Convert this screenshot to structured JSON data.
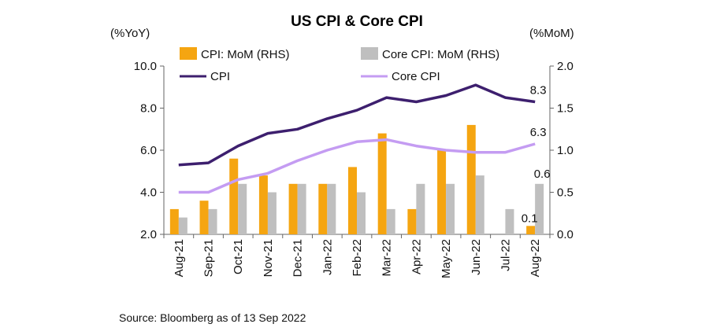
{
  "chart_data": {
    "type": "bar",
    "title": "US CPI & Core CPI",
    "left_axis_label": "(%YoY)",
    "right_axis_label": "(%MoM)",
    "categories": [
      "Aug-21",
      "Sep-21",
      "Oct-21",
      "Nov-21",
      "Dec-21",
      "Jan-22",
      "Feb-22",
      "Mar-22",
      "Apr-22",
      "May-22",
      "Jun-22",
      "Jul-22",
      "Aug-22"
    ],
    "ylim_left": [
      2.0,
      10.0
    ],
    "left_ticks": [
      "2.0",
      "4.0",
      "6.0",
      "8.0",
      "10.0"
    ],
    "ylim_right": [
      0.0,
      2.0
    ],
    "right_ticks": [
      "0.0",
      "0.5",
      "1.0",
      "1.5",
      "2.0"
    ],
    "bar_series": [
      {
        "name": "CPI: MoM (RHS)",
        "color": "#F5A511",
        "axis": "right",
        "values": [
          0.3,
          0.4,
          0.9,
          0.7,
          0.6,
          0.6,
          0.8,
          1.2,
          0.3,
          1.0,
          1.3,
          0.0,
          0.1
        ]
      },
      {
        "name": "Core CPI: MoM (RHS)",
        "color": "#BFBFBF",
        "axis": "right",
        "values": [
          0.2,
          0.3,
          0.6,
          0.5,
          0.6,
          0.6,
          0.5,
          0.3,
          0.6,
          0.6,
          0.7,
          0.3,
          0.6
        ]
      }
    ],
    "line_series": [
      {
        "name": "CPI",
        "color": "#3D1F6E",
        "axis": "left",
        "values": [
          5.3,
          5.4,
          6.2,
          6.8,
          7.0,
          7.5,
          7.9,
          8.5,
          8.3,
          8.6,
          9.1,
          8.5,
          8.3
        ]
      },
      {
        "name": "Core CPI",
        "color": "#C49CF2",
        "axis": "left",
        "values": [
          4.0,
          4.0,
          4.6,
          4.9,
          5.5,
          6.0,
          6.4,
          6.5,
          6.2,
          6.0,
          5.9,
          5.9,
          6.3
        ]
      }
    ],
    "data_labels": [
      {
        "series": "CPI",
        "category": "Aug-22",
        "text": "8.3"
      },
      {
        "series": "Core CPI",
        "category": "Aug-22",
        "text": "6.3"
      },
      {
        "series": "CPI: MoM (RHS)",
        "category": "Aug-22",
        "text": "0.1"
      },
      {
        "series": "Core CPI: MoM (RHS)",
        "category": "Aug-22",
        "text": "0.6"
      }
    ],
    "legend_placement": "top",
    "grid": false
  },
  "source": "Source: Bloomberg as of 13 Sep 2022"
}
